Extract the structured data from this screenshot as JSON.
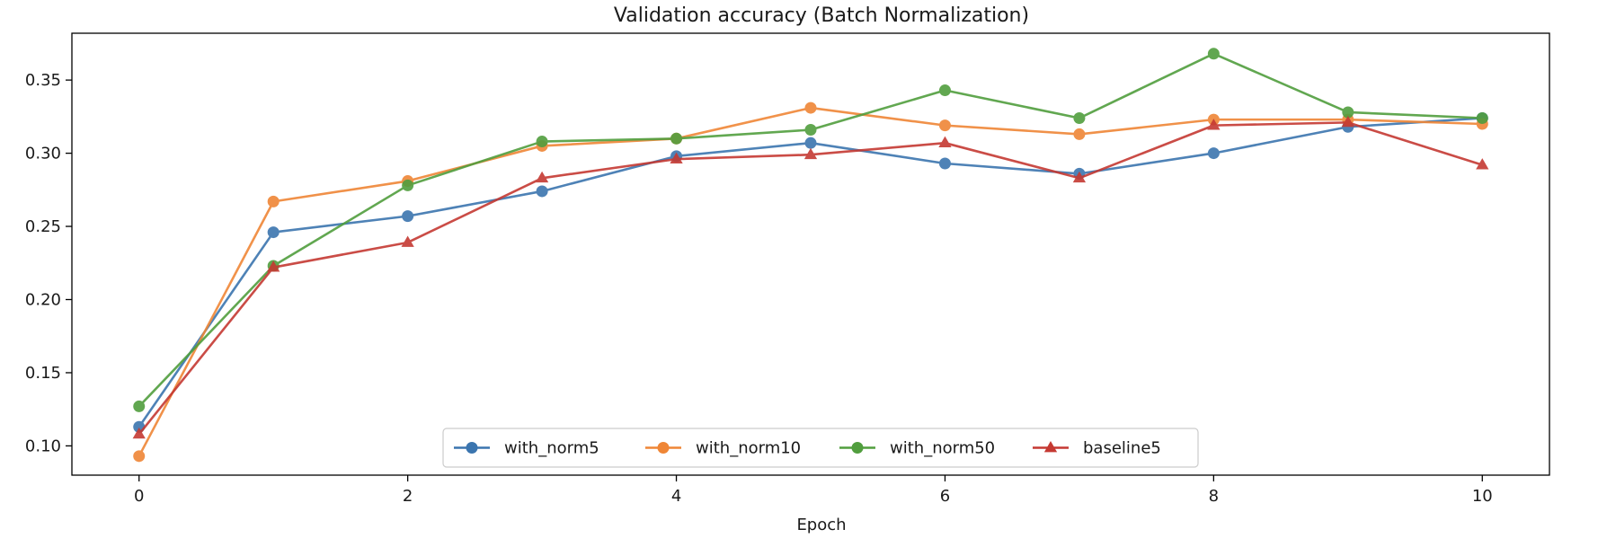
{
  "chart_data": {
    "type": "line",
    "title": "Validation accuracy (Batch Normalization)",
    "xlabel": "Epoch",
    "ylabel": "",
    "x": [
      0,
      1,
      2,
      3,
      4,
      5,
      6,
      7,
      8,
      9,
      10
    ],
    "xlim": [
      -0.5,
      10.5
    ],
    "ylim": [
      0.08,
      0.382
    ],
    "xticks": [
      0,
      2,
      4,
      6,
      8,
      10
    ],
    "xtick_labels": [
      "0",
      "2",
      "4",
      "6",
      "8",
      "10"
    ],
    "yticks": [
      0.1,
      0.15,
      0.2,
      0.25,
      0.3,
      0.35
    ],
    "ytick_labels": [
      "0.10",
      "0.15",
      "0.20",
      "0.25",
      "0.30",
      "0.35"
    ],
    "grid": false,
    "legend": {
      "placement": "lower center",
      "columns": 4
    },
    "series": [
      {
        "name": "with_norm5",
        "color": "#3b75af",
        "marker": "circle",
        "values": [
          0.113,
          0.246,
          0.257,
          0.274,
          0.298,
          0.307,
          0.293,
          0.286,
          0.3,
          0.318,
          0.324
        ]
      },
      {
        "name": "with_norm10",
        "color": "#ef8636",
        "marker": "circle",
        "values": [
          0.093,
          0.267,
          0.281,
          0.305,
          0.31,
          0.331,
          0.319,
          0.313,
          0.323,
          0.323,
          0.32
        ]
      },
      {
        "name": "with_norm50",
        "color": "#519e3e",
        "marker": "circle",
        "values": [
          0.127,
          0.223,
          0.278,
          0.308,
          0.31,
          0.316,
          0.343,
          0.324,
          0.368,
          0.328,
          0.324
        ]
      },
      {
        "name": "baseline5",
        "color": "#c53932",
        "marker": "triangle",
        "values": [
          0.108,
          0.222,
          0.239,
          0.283,
          0.296,
          0.299,
          0.307,
          0.283,
          0.319,
          0.321,
          0.292
        ]
      }
    ]
  }
}
